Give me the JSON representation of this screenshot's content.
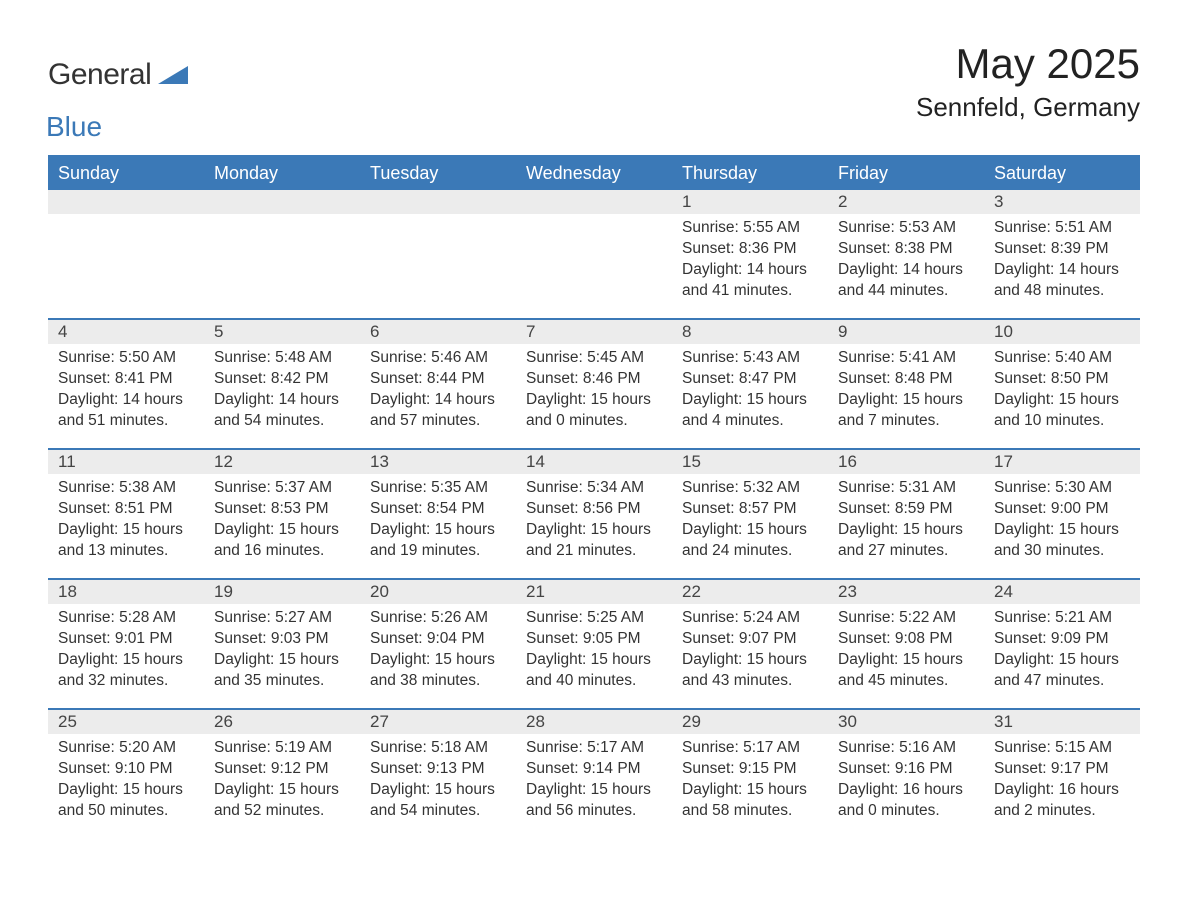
{
  "logo": {
    "general": "General",
    "blue": "Blue"
  },
  "title": "May 2025",
  "location": "Sennfeld, Germany",
  "colors": {
    "header_bg": "#3b79b7",
    "header_text": "#ffffff",
    "day_number_bg": "#ececec",
    "row_border": "#3b79b7",
    "body_text": "#333333"
  },
  "weekdays": [
    "Sunday",
    "Monday",
    "Tuesday",
    "Wednesday",
    "Thursday",
    "Friday",
    "Saturday"
  ],
  "weeks": [
    [
      null,
      null,
      null,
      null,
      {
        "n": "1",
        "sunrise": "5:55 AM",
        "sunset": "8:36 PM",
        "dl": "14 hours and 41 minutes."
      },
      {
        "n": "2",
        "sunrise": "5:53 AM",
        "sunset": "8:38 PM",
        "dl": "14 hours and 44 minutes."
      },
      {
        "n": "3",
        "sunrise": "5:51 AM",
        "sunset": "8:39 PM",
        "dl": "14 hours and 48 minutes."
      }
    ],
    [
      {
        "n": "4",
        "sunrise": "5:50 AM",
        "sunset": "8:41 PM",
        "dl": "14 hours and 51 minutes."
      },
      {
        "n": "5",
        "sunrise": "5:48 AM",
        "sunset": "8:42 PM",
        "dl": "14 hours and 54 minutes."
      },
      {
        "n": "6",
        "sunrise": "5:46 AM",
        "sunset": "8:44 PM",
        "dl": "14 hours and 57 minutes."
      },
      {
        "n": "7",
        "sunrise": "5:45 AM",
        "sunset": "8:46 PM",
        "dl": "15 hours and 0 minutes."
      },
      {
        "n": "8",
        "sunrise": "5:43 AM",
        "sunset": "8:47 PM",
        "dl": "15 hours and 4 minutes."
      },
      {
        "n": "9",
        "sunrise": "5:41 AM",
        "sunset": "8:48 PM",
        "dl": "15 hours and 7 minutes."
      },
      {
        "n": "10",
        "sunrise": "5:40 AM",
        "sunset": "8:50 PM",
        "dl": "15 hours and 10 minutes."
      }
    ],
    [
      {
        "n": "11",
        "sunrise": "5:38 AM",
        "sunset": "8:51 PM",
        "dl": "15 hours and 13 minutes."
      },
      {
        "n": "12",
        "sunrise": "5:37 AM",
        "sunset": "8:53 PM",
        "dl": "15 hours and 16 minutes."
      },
      {
        "n": "13",
        "sunrise": "5:35 AM",
        "sunset": "8:54 PM",
        "dl": "15 hours and 19 minutes."
      },
      {
        "n": "14",
        "sunrise": "5:34 AM",
        "sunset": "8:56 PM",
        "dl": "15 hours and 21 minutes."
      },
      {
        "n": "15",
        "sunrise": "5:32 AM",
        "sunset": "8:57 PM",
        "dl": "15 hours and 24 minutes."
      },
      {
        "n": "16",
        "sunrise": "5:31 AM",
        "sunset": "8:59 PM",
        "dl": "15 hours and 27 minutes."
      },
      {
        "n": "17",
        "sunrise": "5:30 AM",
        "sunset": "9:00 PM",
        "dl": "15 hours and 30 minutes."
      }
    ],
    [
      {
        "n": "18",
        "sunrise": "5:28 AM",
        "sunset": "9:01 PM",
        "dl": "15 hours and 32 minutes."
      },
      {
        "n": "19",
        "sunrise": "5:27 AM",
        "sunset": "9:03 PM",
        "dl": "15 hours and 35 minutes."
      },
      {
        "n": "20",
        "sunrise": "5:26 AM",
        "sunset": "9:04 PM",
        "dl": "15 hours and 38 minutes."
      },
      {
        "n": "21",
        "sunrise": "5:25 AM",
        "sunset": "9:05 PM",
        "dl": "15 hours and 40 minutes."
      },
      {
        "n": "22",
        "sunrise": "5:24 AM",
        "sunset": "9:07 PM",
        "dl": "15 hours and 43 minutes."
      },
      {
        "n": "23",
        "sunrise": "5:22 AM",
        "sunset": "9:08 PM",
        "dl": "15 hours and 45 minutes."
      },
      {
        "n": "24",
        "sunrise": "5:21 AM",
        "sunset": "9:09 PM",
        "dl": "15 hours and 47 minutes."
      }
    ],
    [
      {
        "n": "25",
        "sunrise": "5:20 AM",
        "sunset": "9:10 PM",
        "dl": "15 hours and 50 minutes."
      },
      {
        "n": "26",
        "sunrise": "5:19 AM",
        "sunset": "9:12 PM",
        "dl": "15 hours and 52 minutes."
      },
      {
        "n": "27",
        "sunrise": "5:18 AM",
        "sunset": "9:13 PM",
        "dl": "15 hours and 54 minutes."
      },
      {
        "n": "28",
        "sunrise": "5:17 AM",
        "sunset": "9:14 PM",
        "dl": "15 hours and 56 minutes."
      },
      {
        "n": "29",
        "sunrise": "5:17 AM",
        "sunset": "9:15 PM",
        "dl": "15 hours and 58 minutes."
      },
      {
        "n": "30",
        "sunrise": "5:16 AM",
        "sunset": "9:16 PM",
        "dl": "16 hours and 0 minutes."
      },
      {
        "n": "31",
        "sunrise": "5:15 AM",
        "sunset": "9:17 PM",
        "dl": "16 hours and 2 minutes."
      }
    ]
  ],
  "labels": {
    "sunrise": "Sunrise: ",
    "sunset": "Sunset: ",
    "daylight": "Daylight: "
  }
}
